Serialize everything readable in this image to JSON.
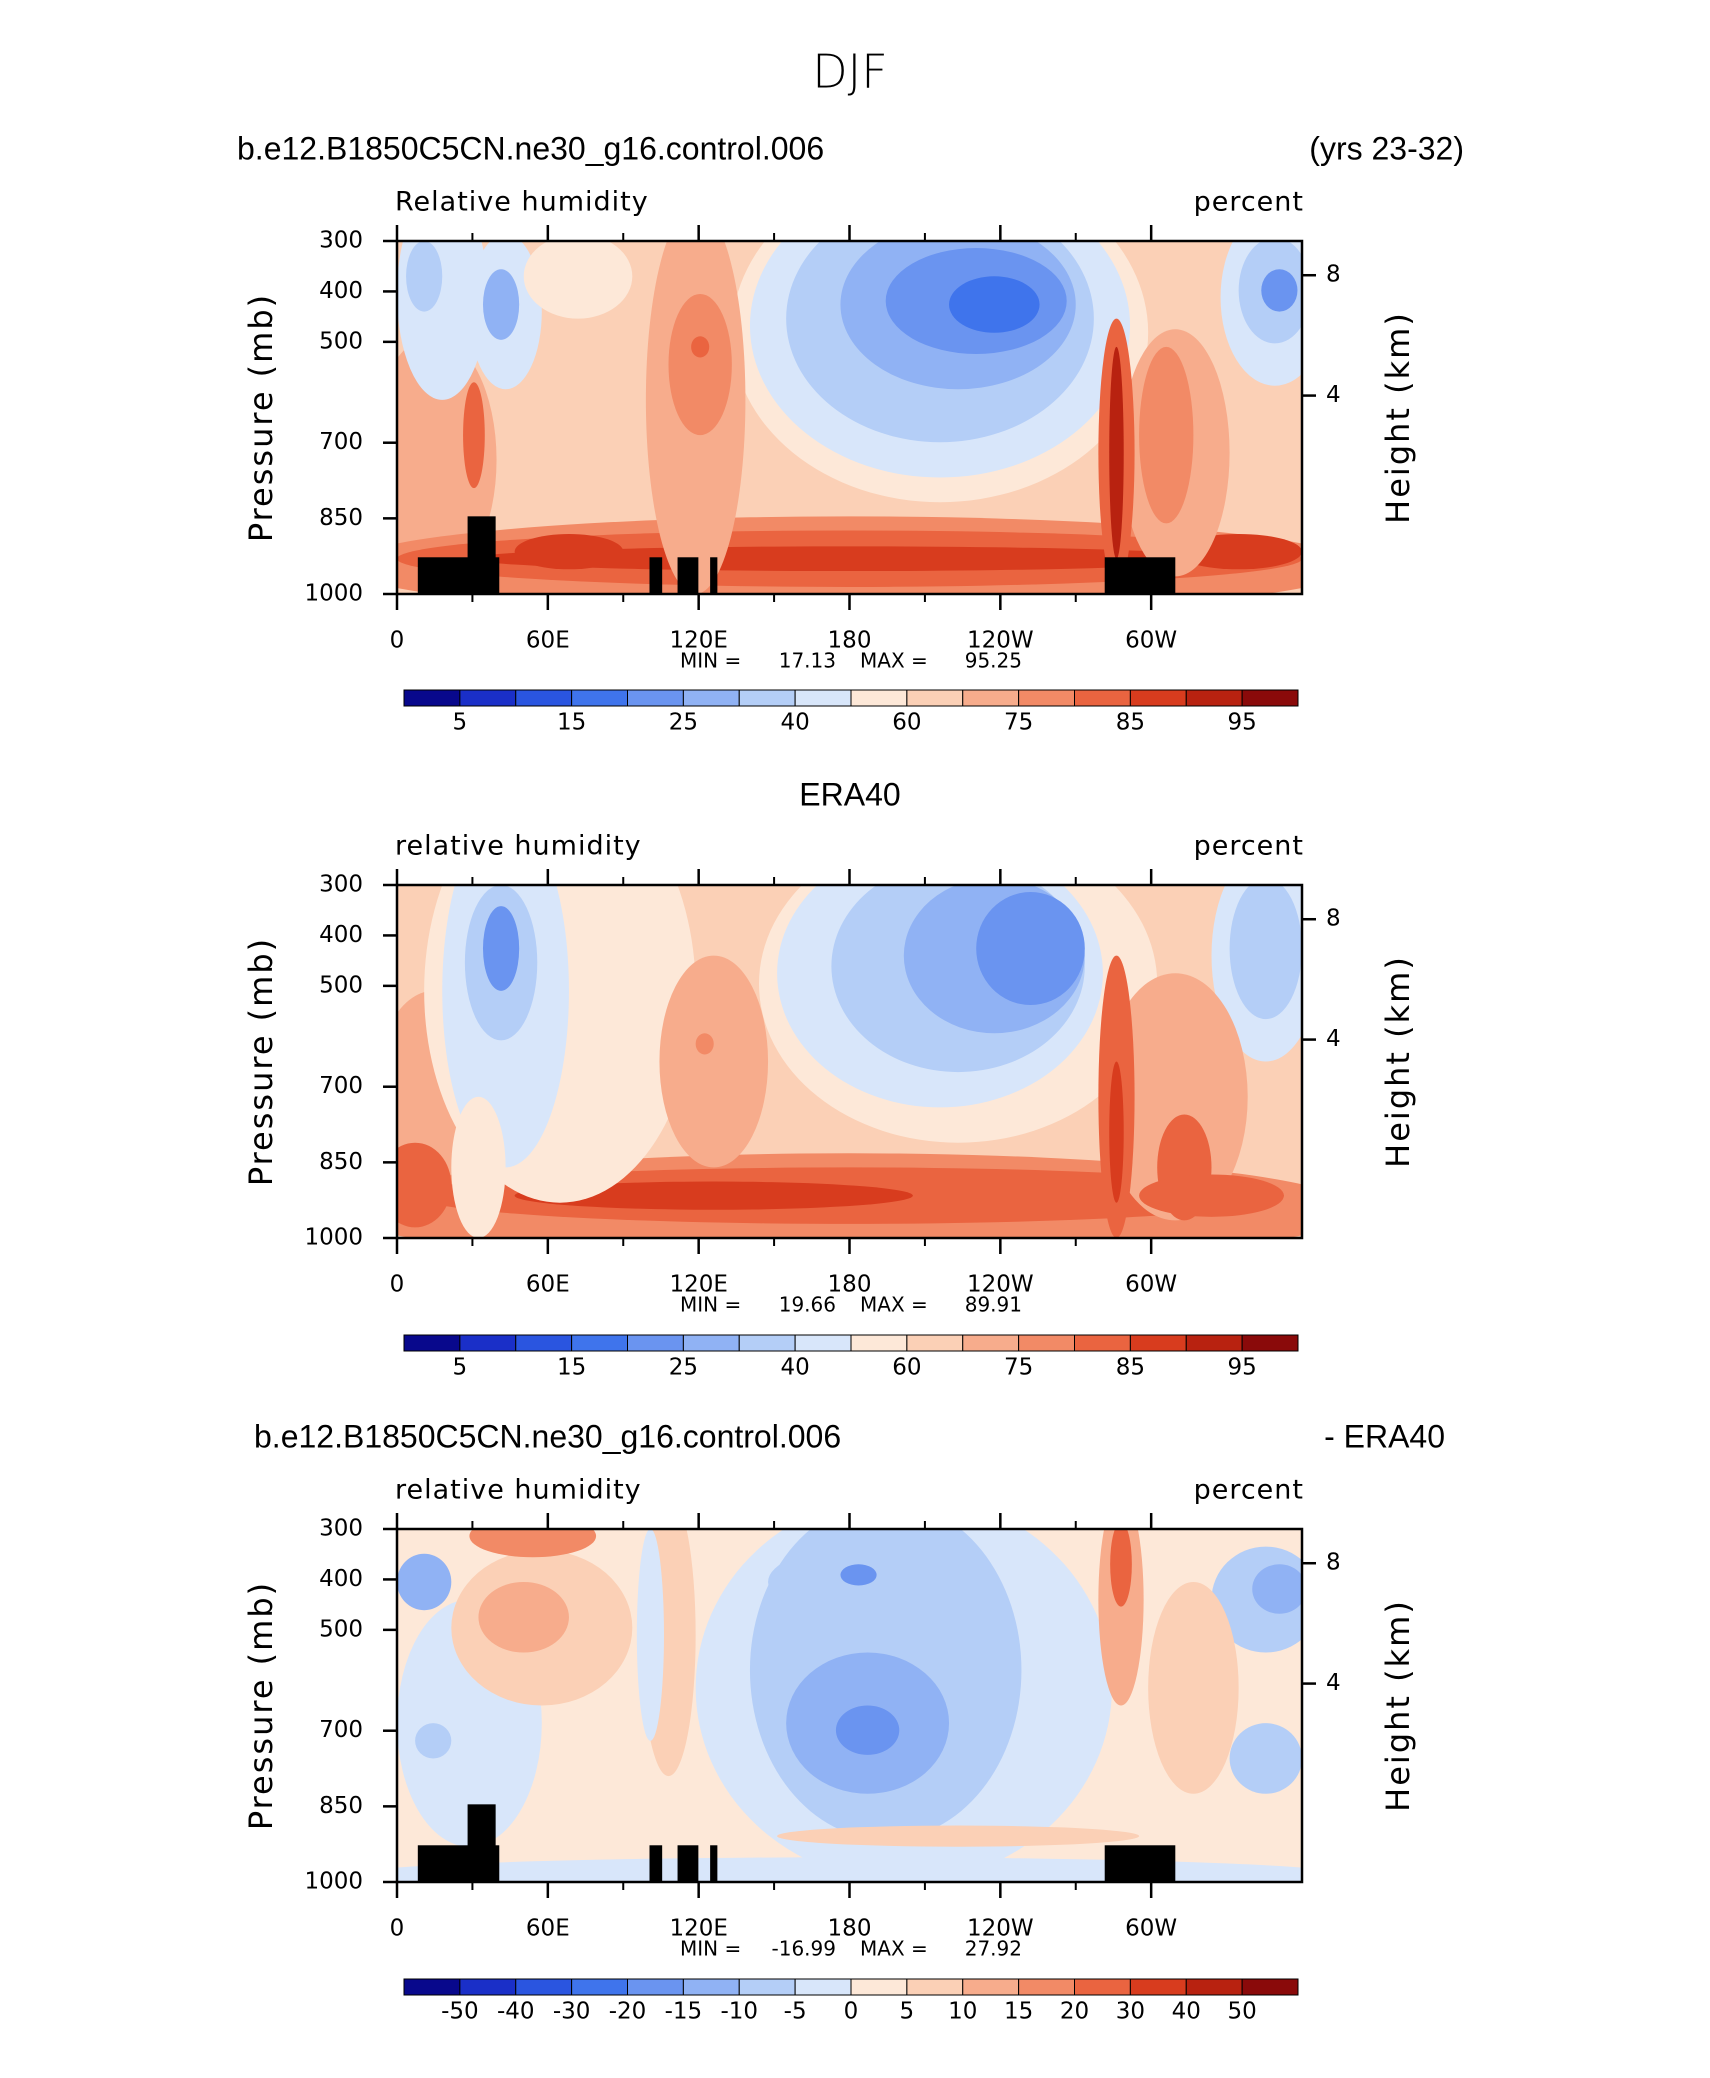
{
  "chart_data": {
    "title": "DJF",
    "panels": [
      {
        "type": "contour",
        "title_left": "b.e12.B1850C5CN.ne30_g16.control.006",
        "title_right": "(yrs 23-32)",
        "field": "Relative humidity",
        "units": "percent",
        "ylabel": "Pressure (mb)",
        "y2label": "Height (km)",
        "ylim": [
          1000,
          300
        ],
        "yticks": [
          300,
          400,
          500,
          700,
          850,
          1000
        ],
        "y2ticks": [
          8,
          4
        ],
        "xlim": [
          0,
          360
        ],
        "xticks": [
          0,
          {
            "value": 60,
            "label": "60E"
          },
          {
            "value": 120,
            "label": "120E"
          },
          180,
          {
            "value": 240,
            "label": "120W"
          },
          {
            "value": 300,
            "label": "60W"
          }
        ],
        "min_label": "MIN =",
        "min": 17.13,
        "max_label": "MAX =",
        "max": 95.25,
        "colorbar": {
          "colors": [
            "#08088c",
            "#1a2fc8",
            "#2a55e0",
            "#3f74ec",
            "#6a94f0",
            "#90b2f4",
            "#b4cef7",
            "#d8e6fa",
            "#fde8d8",
            "#fbd0b6",
            "#f7ac8c",
            "#f28a66",
            "#ea6440",
            "#d83c1e",
            "#b82210",
            "#8a0a0a"
          ],
          "ticks": [
            5,
            15,
            25,
            40,
            60,
            75,
            85,
            95
          ]
        }
      },
      {
        "type": "contour",
        "title_center": "ERA40",
        "field": "relative humidity",
        "units": "percent",
        "ylabel": "Pressure (mb)",
        "y2label": "Height (km)",
        "ylim": [
          1000,
          300
        ],
        "yticks": [
          300,
          400,
          500,
          700,
          850,
          1000
        ],
        "y2ticks": [
          8,
          4
        ],
        "xlim": [
          0,
          360
        ],
        "xticks": [
          0,
          {
            "value": 60,
            "label": "60E"
          },
          {
            "value": 120,
            "label": "120E"
          },
          180,
          {
            "value": 240,
            "label": "120W"
          },
          {
            "value": 300,
            "label": "60W"
          }
        ],
        "min_label": "MIN =",
        "min": 19.66,
        "max_label": "MAX =",
        "max": 89.91,
        "colorbar": {
          "colors": [
            "#08088c",
            "#1a2fc8",
            "#2a55e0",
            "#3f74ec",
            "#6a94f0",
            "#90b2f4",
            "#b4cef7",
            "#d8e6fa",
            "#fde8d8",
            "#fbd0b6",
            "#f7ac8c",
            "#f28a66",
            "#ea6440",
            "#d83c1e",
            "#b82210",
            "#8a0a0a"
          ],
          "ticks": [
            5,
            15,
            25,
            40,
            60,
            75,
            85,
            95
          ]
        }
      },
      {
        "type": "contour",
        "title_left": "b.e12.B1850C5CN.ne30_g16.control.006",
        "title_right": "- ERA40",
        "field": "relative humidity",
        "units": "percent",
        "ylabel": "Pressure (mb)",
        "y2label": "Height (km)",
        "ylim": [
          1000,
          300
        ],
        "yticks": [
          300,
          400,
          500,
          700,
          850,
          1000
        ],
        "y2ticks": [
          8,
          4
        ],
        "xlim": [
          0,
          360
        ],
        "xticks": [
          0,
          {
            "value": 60,
            "label": "60E"
          },
          {
            "value": 120,
            "label": "120E"
          },
          180,
          {
            "value": 240,
            "label": "120W"
          },
          {
            "value": 300,
            "label": "60W"
          }
        ],
        "min_label": "MIN =",
        "min": -16.99,
        "max_label": "MAX =",
        "max": 27.92,
        "colorbar": {
          "colors": [
            "#08088c",
            "#1a2fc8",
            "#2a55e0",
            "#3f74ec",
            "#6a94f0",
            "#90b2f4",
            "#b4cef7",
            "#d8e6fa",
            "#fde8d8",
            "#fbd0b6",
            "#f7ac8c",
            "#f28a66",
            "#ea6440",
            "#d83c1e",
            "#b82210",
            "#8a0a0a"
          ],
          "ticks": [
            -50,
            -40,
            -30,
            -20,
            -15,
            -10,
            -5,
            0,
            5,
            10,
            15,
            20,
            30,
            40,
            50
          ]
        }
      }
    ]
  }
}
